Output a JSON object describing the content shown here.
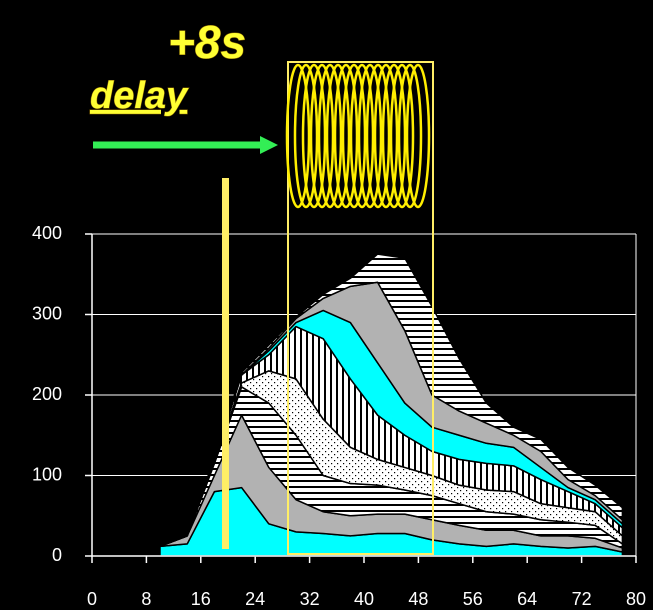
{
  "chart_data": {
    "type": "stacked-area",
    "annotations": [
      {
        "text": "+8s"
      },
      {
        "text": "delay"
      }
    ],
    "x": [
      10,
      14,
      18,
      22,
      26,
      30,
      34,
      38,
      42,
      46,
      50,
      54,
      58,
      62,
      66,
      70,
      74,
      78
    ],
    "series": [
      {
        "color": "#00ffff",
        "pattern": "solid",
        "values": [
          12,
          15,
          80,
          85,
          40,
          30,
          28,
          25,
          28,
          28,
          20,
          15,
          12,
          15,
          12,
          10,
          12,
          5
        ]
      },
      {
        "color": "#b2b2b2",
        "pattern": "solid",
        "values": [
          0,
          10,
          20,
          90,
          70,
          40,
          27,
          25,
          24,
          24,
          25,
          23,
          20,
          17,
          13,
          15,
          10,
          5
        ]
      },
      {
        "color": "#ffffff",
        "pattern": "hstripe",
        "values": [
          0,
          0,
          15,
          35,
          80,
          80,
          45,
          40,
          36,
          30,
          30,
          27,
          23,
          20,
          20,
          17,
          16,
          5
        ]
      },
      {
        "color": "#ffffff",
        "pattern": "dots",
        "values": [
          0,
          0,
          3,
          5,
          40,
          70,
          70,
          45,
          32,
          28,
          25,
          23,
          27,
          28,
          20,
          18,
          17,
          10
        ]
      },
      {
        "color": "#ffffff",
        "pattern": "vstripe",
        "values": [
          0,
          0,
          2,
          10,
          20,
          65,
          100,
          85,
          55,
          40,
          30,
          32,
          33,
          32,
          30,
          20,
          10,
          10
        ]
      },
      {
        "color": "#00ffff",
        "pattern": "solid",
        "values": [
          0,
          0,
          0,
          0,
          5,
          5,
          35,
          70,
          65,
          40,
          30,
          30,
          25,
          23,
          15,
          5,
          5,
          5
        ]
      },
      {
        "color": "#b2b2b2",
        "pattern": "solid",
        "values": [
          0,
          0,
          0,
          0,
          3,
          5,
          15,
          45,
          100,
          90,
          40,
          30,
          25,
          15,
          20,
          10,
          5,
          5
        ]
      },
      {
        "color": "#ffffff",
        "pattern": "hstripe",
        "values": [
          0,
          0,
          2,
          3,
          4,
          2,
          5,
          10,
          35,
          90,
          110,
          65,
          25,
          10,
          15,
          15,
          13,
          15
        ]
      }
    ],
    "xlim": [
      0,
      80
    ],
    "xticks": [
      0,
      8,
      16,
      24,
      32,
      40,
      48,
      56,
      64,
      72,
      80
    ],
    "ylim": [
      0,
      400
    ],
    "yticks": [
      0,
      100,
      200,
      300,
      400
    ],
    "grid": true
  }
}
